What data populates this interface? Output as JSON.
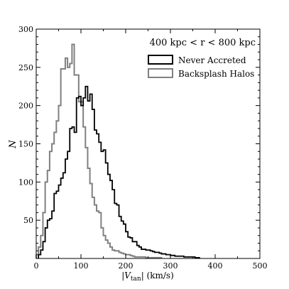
{
  "chart_data": {
    "type": "histogram",
    "xlabel_main": "|V",
    "xlabel_sub": "tan",
    "xlabel_rest": "| (km/s)",
    "ylabel": "N",
    "annotation": "400 kpc < r < 800 kpc",
    "xlim": [
      0,
      500
    ],
    "ylim": [
      0,
      300
    ],
    "xticks": [
      0,
      100,
      200,
      300,
      400,
      500
    ],
    "yticks": [
      50,
      100,
      150,
      200,
      250,
      300
    ],
    "bin_width": 5,
    "legend_position": "upper right",
    "series": [
      {
        "name": "Never Accreted",
        "color": "#000000",
        "x_start": 5,
        "values": [
          5,
          11,
          22,
          40,
          50,
          52,
          62,
          85,
          88,
          96,
          105,
          112,
          130,
          140,
          170,
          172,
          165,
          210,
          212,
          200,
          210,
          225,
          206,
          215,
          195,
          168,
          163,
          152,
          140,
          142,
          125,
          110,
          102,
          90,
          72,
          70,
          55,
          49,
          45,
          35,
          28,
          27,
          22,
          22,
          17,
          15,
          12,
          12,
          11,
          11,
          10,
          9,
          8,
          8,
          7,
          6,
          6,
          5,
          5,
          4,
          4,
          3,
          3,
          3,
          3,
          2,
          2,
          2,
          2,
          2,
          1,
          1
        ]
      },
      {
        "name": "Backsplash Halos",
        "color": "#808080",
        "x_start": 0,
        "values": [
          5,
          15,
          30,
          60,
          100,
          115,
          140,
          150,
          165,
          180,
          200,
          248,
          248,
          262,
          250,
          255,
          280,
          240,
          240,
          205,
          205,
          172,
          145,
          118,
          98,
          80,
          70,
          62,
          60,
          40,
          30,
          24,
          20,
          15,
          11,
          10,
          10,
          8,
          7,
          6,
          5,
          5,
          4,
          3,
          2,
          2,
          2,
          2,
          2,
          1,
          1,
          1,
          1,
          1,
          1,
          1
        ]
      }
    ]
  }
}
